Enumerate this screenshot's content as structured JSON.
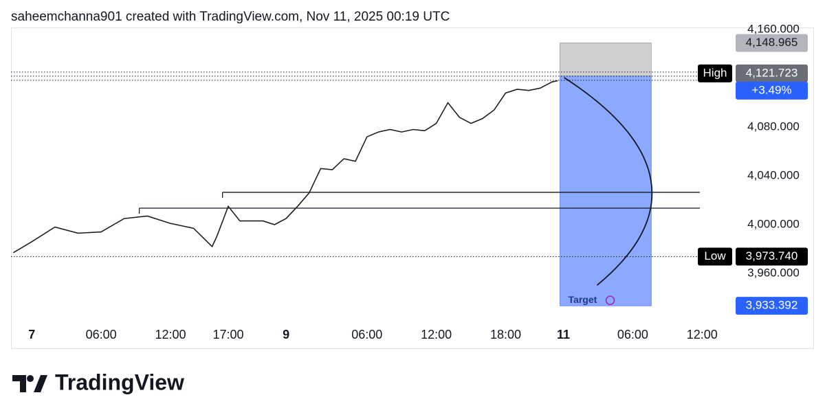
{
  "header": "saheemchanna901 created with TradingView.com, Nov 11, 2025 00:19 UTC",
  "brand": "TradingView",
  "chart_data": {
    "type": "line",
    "color": "#1e1e1e",
    "x": [
      -1.6,
      0,
      2,
      4,
      6,
      8,
      10,
      12,
      14,
      15.6,
      16,
      17,
      18,
      20,
      21,
      22,
      23,
      24,
      25,
      26,
      27,
      28,
      29,
      30,
      31,
      32,
      33,
      34,
      35,
      36,
      37,
      38,
      39,
      40,
      41,
      42,
      43,
      44,
      45,
      45.5
    ],
    "values": [
      3977,
      3986,
      3998,
      3993,
      3994,
      4005,
      4007,
      4001,
      3997,
      3982,
      3990,
      4015,
      4003,
      4003,
      4000,
      4005,
      4015,
      4026,
      4046,
      4045,
      4054,
      4052,
      4072,
      4076,
      4078,
      4076,
      4078,
      4077,
      4083,
      4100,
      4088,
      4083,
      4087,
      4094,
      4108,
      4111,
      4110,
      4112,
      4117,
      4118
    ],
    "xlim": [
      -1.8,
      60.6
    ],
    "xticks": [
      {
        "value": 0,
        "label": "7"
      },
      {
        "value": 6,
        "label": "06:00"
      },
      {
        "value": 12,
        "label": "12:00"
      },
      {
        "value": 17,
        "label": "17:00"
      },
      {
        "value": 22,
        "label": "9"
      },
      {
        "value": 29,
        "label": "06:00"
      },
      {
        "value": 35,
        "label": "12:00"
      },
      {
        "value": 41,
        "label": "18:00"
      },
      {
        "value": 46,
        "label": "11"
      },
      {
        "value": 52,
        "label": "06:00"
      },
      {
        "value": 58,
        "label": "12:00"
      }
    ],
    "ylim": [
      3919.4,
      4164.5
    ],
    "yticks": [
      {
        "value": 4160,
        "label": "4,160.000"
      },
      {
        "value": 4080,
        "label": "4,080.000"
      },
      {
        "value": 4040,
        "label": "4,040.000"
      },
      {
        "value": 4000,
        "label": "4,000.000"
      },
      {
        "value": 3960,
        "label": "3,960.000"
      }
    ],
    "levels": [
      {
        "value": 4026.5,
        "from": 16.5
      },
      {
        "value": 4013.5,
        "from": 9.3
      }
    ],
    "high": {
      "value": 4121.723,
      "label": "4,121.723",
      "tag": "High",
      "change": "+3.49%"
    },
    "low": {
      "value": 3973.74,
      "label": "3,973.740",
      "tag": "Low"
    },
    "position": {
      "from": 45.7,
      "to": 53.6,
      "stop": {
        "value": 4148.965,
        "label": "4,148.965"
      },
      "target": {
        "value": 3933.392,
        "label": "3,933.392"
      },
      "target_text": "Target"
    }
  }
}
